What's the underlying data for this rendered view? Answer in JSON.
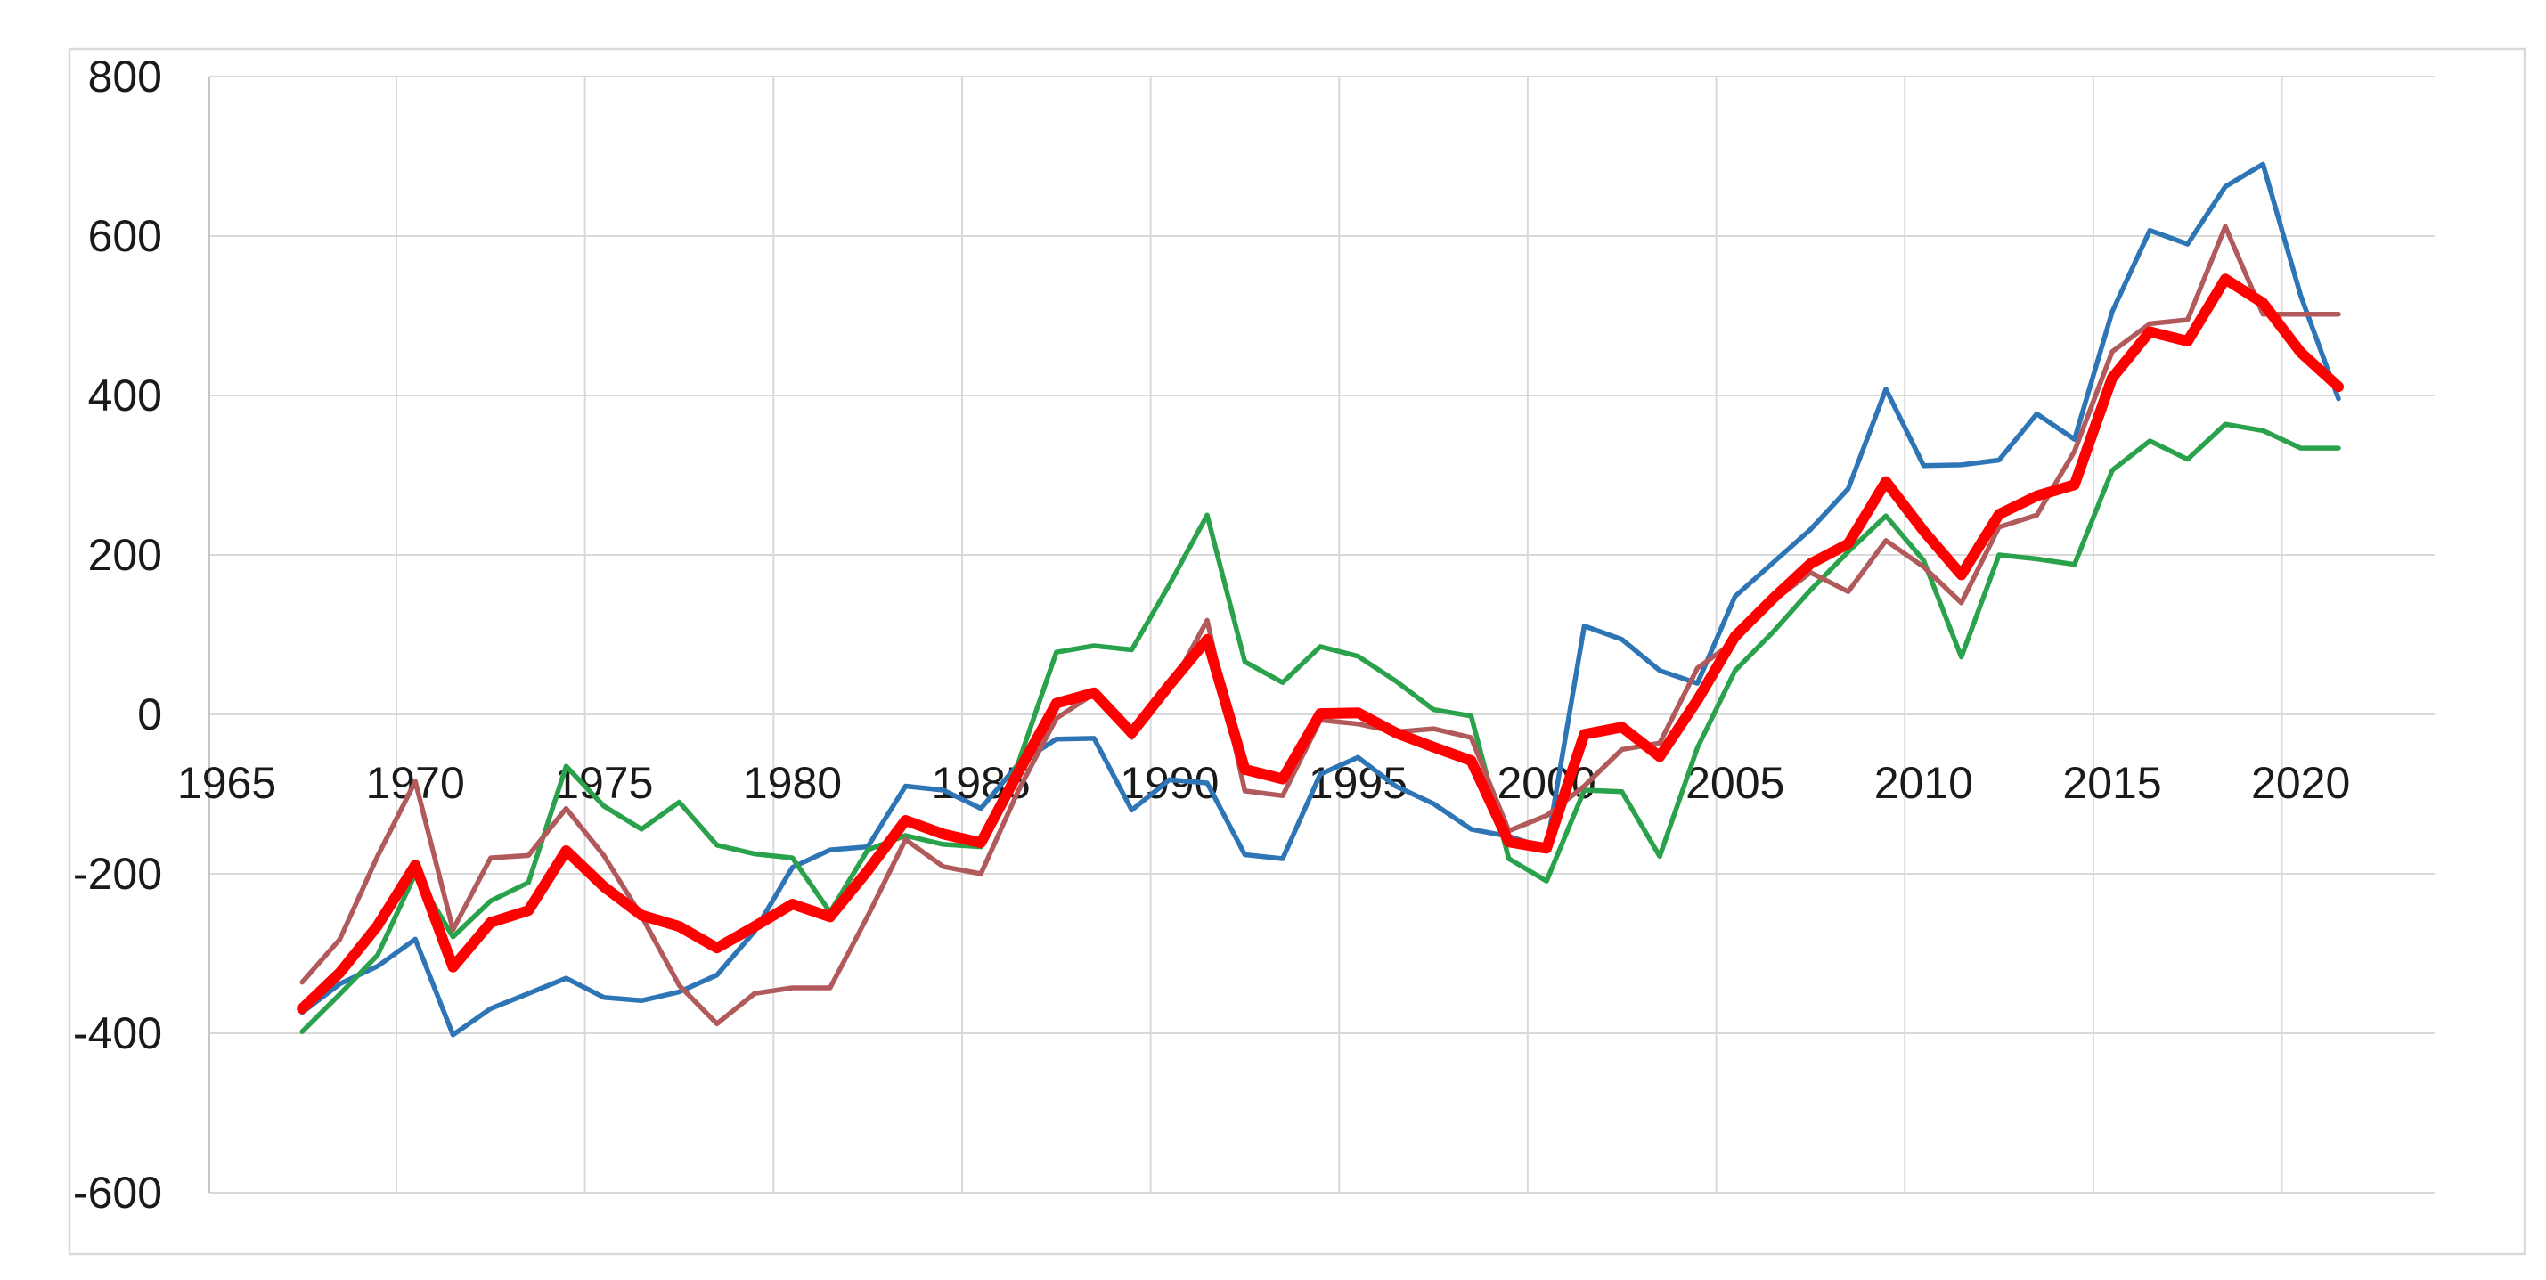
{
  "window": {
    "title": "",
    "background_color": "#ffffff",
    "chart_border_color": "#d9d9d9"
  },
  "chart_data": {
    "type": "line",
    "title": "",
    "xlabel": "",
    "ylabel": "",
    "grid": true,
    "legend": "none",
    "gridline_color": "#d9d9d9",
    "axis_line_color": "#c6c6c6",
    "tick_label_color": "#1a1a1a",
    "ylim": [
      -600,
      800
    ],
    "y_ticks": [
      800,
      600,
      400,
      200,
      0,
      -200,
      -400,
      -600
    ],
    "x_ticks": [
      1965,
      1970,
      1975,
      1980,
      1985,
      1990,
      1995,
      2000,
      2005,
      2010,
      2015,
      2020
    ],
    "x_axis_years_span": [
      1965,
      2022
    ],
    "x": [
      1967,
      1968,
      1969,
      1970,
      1971,
      1972,
      1973,
      1974,
      1975,
      1976,
      1977,
      1978,
      1979,
      1980,
      1981,
      1982,
      1983,
      1984,
      1985,
      1986,
      1987,
      1988,
      1989,
      1990,
      1991,
      1992,
      1993,
      1994,
      1995,
      1996,
      1997,
      1998,
      1999,
      2000,
      2001,
      2002,
      2003,
      2004,
      2005,
      2006,
      2007,
      2008,
      2009,
      2010,
      2011,
      2012,
      2013,
      2014,
      2015,
      2016,
      2017,
      2018,
      2019,
      2020,
      2021
    ],
    "series": [
      {
        "name": "series-blue",
        "color": "#2e75b6",
        "stroke_width": 5.5,
        "values": [
          -374,
          -338,
          -316,
          -282,
          -402,
          -369,
          -350,
          -331,
          -355,
          -359,
          -348,
          -327,
          -272,
          -192,
          -170,
          -166,
          -90,
          -95,
          -118,
          -62,
          -31,
          -30,
          -120,
          -82,
          -86,
          -176,
          -181,
          -75,
          -54,
          -90,
          -112,
          -144,
          -153,
          -168,
          111,
          94,
          55,
          39,
          148,
          190,
          232,
          283,
          408,
          312,
          313,
          319,
          377,
          345,
          505,
          607,
          590,
          662,
          690,
          525,
          396
        ]
      },
      {
        "name": "series-green",
        "color": "#2aa14b",
        "stroke_width": 5.5,
        "values": [
          -398,
          -351,
          -302,
          -200,
          -279,
          -234,
          -211,
          -65,
          -115,
          -144,
          -110,
          -164,
          -175,
          -180,
          -248,
          -170,
          -152,
          -163,
          -166,
          -60,
          78,
          86,
          81,
          163,
          250,
          66,
          40,
          85,
          73,
          42,
          6,
          -2,
          -181,
          -209,
          -95,
          -97,
          -178,
          -42,
          55,
          103,
          156,
          204,
          249,
          193,
          72,
          200,
          195,
          188,
          306,
          343,
          320,
          364,
          356,
          334,
          334
        ]
      },
      {
        "name": "series-dark-red",
        "color": "#b05a5c",
        "stroke_width": 5.5,
        "values": [
          -336,
          -282,
          -178,
          -84,
          -270,
          -180,
          -177,
          -118,
          -177,
          -253,
          -340,
          -388,
          -350,
          -343,
          -343,
          -253,
          -157,
          -191,
          -200,
          -95,
          -5,
          26,
          -29,
          31,
          118,
          -96,
          -102,
          -7,
          -12,
          -22,
          -18,
          -29,
          -146,
          -127,
          -90,
          -44,
          -36,
          58,
          92,
          142,
          178,
          154,
          218,
          185,
          140,
          235,
          250,
          330,
          455,
          490,
          495,
          612,
          502,
          502,
          502
        ]
      },
      {
        "name": "series-red-thick-mean",
        "color": "#ff0000",
        "stroke_width": 12,
        "values": [
          -369,
          -324,
          -265,
          -189,
          -317,
          -261,
          -246,
          -171,
          -216,
          -252,
          -266,
          -293,
          -266,
          -238,
          -254,
          -196,
          -133,
          -150,
          -161,
          -72,
          14,
          27,
          -23,
          37,
          94,
          -69,
          -81,
          1,
          2,
          -23,
          -41,
          -58,
          -160,
          -168,
          -25,
          -16,
          -53,
          18,
          98,
          145,
          189,
          214,
          292,
          230,
          175,
          251,
          274,
          288,
          422,
          480,
          468,
          546,
          516,
          454,
          411
        ]
      }
    ]
  }
}
